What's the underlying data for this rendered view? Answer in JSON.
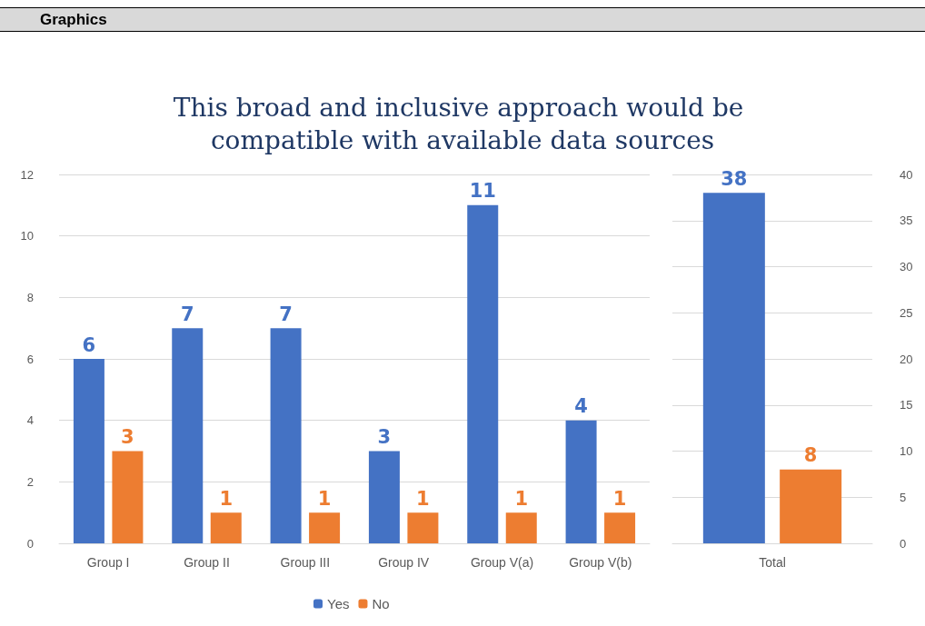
{
  "chart_data": [
    {
      "type": "bar",
      "title": "This broad and inclusive approach would be compatible with available data sources",
      "annotations": [
        "Graphics"
      ],
      "categories": [
        "Group I",
        "Group II",
        "Group III",
        "Group IV",
        "Group V(a)",
        "Group V(b)"
      ],
      "series": [
        {
          "name": "Yes",
          "color": "#4472c4",
          "values": [
            6,
            7,
            7,
            3,
            11,
            4
          ]
        },
        {
          "name": "No",
          "color": "#ed7d31",
          "values": [
            3,
            1,
            1,
            1,
            1,
            1
          ]
        }
      ],
      "ylim": [
        0,
        12
      ],
      "yticks": [
        0,
        2,
        4,
        6,
        8,
        10,
        12
      ],
      "grid": "y",
      "legend": "bottom",
      "data_labels": true
    },
    {
      "type": "bar",
      "categories": [
        "Total"
      ],
      "series": [
        {
          "color": "#4472c4",
          "values": [
            38
          ]
        },
        {
          "color": "#ed7d31",
          "values": [
            8
          ]
        }
      ],
      "ylim": [
        0,
        40
      ],
      "yticks": [
        0,
        5,
        10,
        15,
        20,
        25,
        30,
        35,
        40
      ],
      "grid": "y",
      "data_labels": true
    }
  ]
}
